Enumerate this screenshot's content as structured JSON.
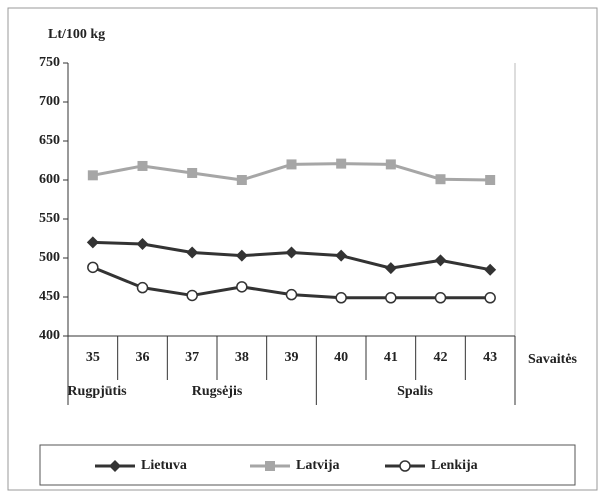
{
  "chart_data": {
    "type": "line",
    "y_label": "Lt/100 kg",
    "x_label": "Savaitės",
    "categories": [
      "35",
      "36",
      "37",
      "38",
      "39",
      "40",
      "41",
      "42",
      "43"
    ],
    "groups": [
      "Rugpjūtis",
      "Rugsėjis",
      "Spalis"
    ],
    "series": [
      {
        "name": "Lietuva",
        "color": "#333333",
        "marker": "diamond",
        "values": [
          520,
          518,
          507,
          503,
          507,
          503,
          487,
          497,
          485
        ]
      },
      {
        "name": "Latvija",
        "color": "#a6a6a6",
        "marker": "square",
        "values": [
          606,
          618,
          609,
          600,
          620,
          621,
          620,
          601,
          600
        ]
      },
      {
        "name": "Lenkija",
        "color": "#333333",
        "marker": "circle",
        "values": [
          488,
          462,
          452,
          463,
          453,
          449,
          449,
          449,
          449
        ]
      }
    ],
    "ylim": [
      400,
      750
    ],
    "yticks": [
      400,
      450,
      500,
      550,
      600,
      650,
      700,
      750
    ],
    "grid": false,
    "legend": "bottom"
  }
}
